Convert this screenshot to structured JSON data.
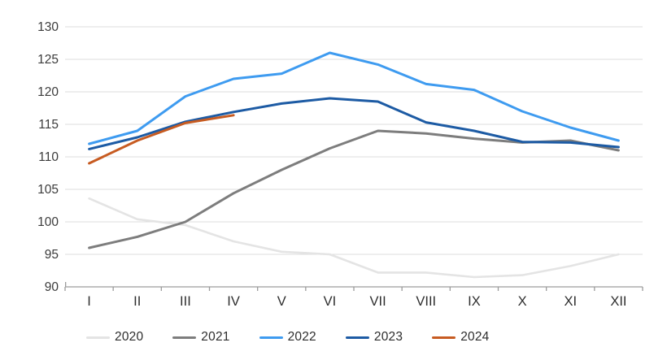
{
  "chart_data": {
    "type": "line",
    "title": "",
    "xlabel": "",
    "ylabel": "",
    "x": [
      "I",
      "II",
      "III",
      "IV",
      "V",
      "VI",
      "VII",
      "VIII",
      "IX",
      "X",
      "XI",
      "XII"
    ],
    "ylim": [
      90,
      130
    ],
    "yticks": [
      90,
      95,
      100,
      105,
      110,
      115,
      120,
      125,
      130
    ],
    "grid": "horizontal",
    "legend_position": "bottom",
    "series": [
      {
        "name": "2020",
        "color": "#e4e4e4",
        "width": 2.6,
        "values": [
          103.6,
          100.4,
          99.5,
          97.0,
          95.4,
          95.0,
          92.2,
          92.2,
          91.5,
          91.8,
          93.2,
          95.0
        ]
      },
      {
        "name": "2021",
        "color": "#7d7d7d",
        "width": 3,
        "values": [
          96.0,
          97.7,
          100.0,
          104.4,
          108.0,
          111.3,
          114.0,
          113.6,
          112.8,
          112.2,
          112.5,
          111.0
        ]
      },
      {
        "name": "2022",
        "color": "#3e9bf0",
        "width": 3,
        "values": [
          112.0,
          114.0,
          119.3,
          122.0,
          122.8,
          126.0,
          124.2,
          121.2,
          120.3,
          117.0,
          114.5,
          112.5
        ]
      },
      {
        "name": "2023",
        "color": "#1d5ba4",
        "width": 3,
        "values": [
          111.2,
          113.0,
          115.4,
          116.9,
          118.2,
          119.0,
          118.5,
          115.3,
          114.0,
          112.3,
          112.2,
          111.5
        ]
      },
      {
        "name": "2024",
        "color": "#c75b21",
        "width": 3,
        "values": [
          109.0,
          112.5,
          115.2,
          116.4
        ]
      }
    ]
  },
  "style": {
    "grid_color": "#dcdcdc",
    "axis_color": "#9c9c9c",
    "axis_text_color": "#3c3c3c",
    "background": "#ffffff"
  }
}
